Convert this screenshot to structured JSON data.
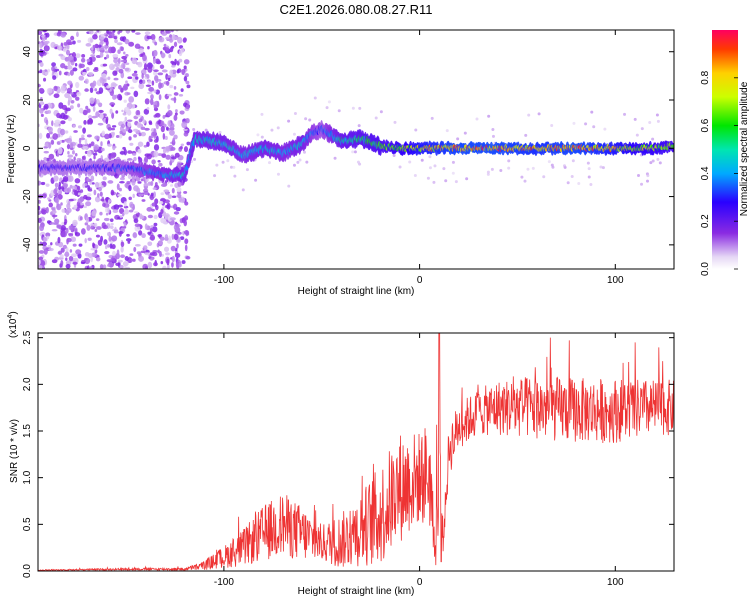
{
  "title": "C2E1.2026.080.08.27.R11",
  "chart_data": [
    {
      "type": "heatmap",
      "name": "spectrogram",
      "xlabel": "Height of straight line (km)",
      "ylabel": "Frequency (Hz)",
      "xlim": [
        -195,
        130
      ],
      "ylim": [
        -50,
        49
      ],
      "xticks": [
        -100,
        0,
        100
      ],
      "xtick_labels": [
        "-100",
        "0",
        "100"
      ],
      "yticks": [
        -40,
        -20,
        0,
        20,
        40
      ],
      "ytick_labels": [
        "-40",
        "-20",
        "0",
        "20",
        "40"
      ],
      "colorbar": {
        "label": "Normalized spectral amplitude",
        "range": [
          0,
          1
        ],
        "ticks": [
          0.0,
          0.2,
          0.4,
          0.6,
          0.8
        ],
        "tick_labels": [
          "0.0",
          "0.2",
          "0.4",
          "0.6",
          "0.8"
        ],
        "colormap": "rainbow-lavender"
      },
      "ridge": {
        "description": "dominant frequency vs height",
        "height_km": [
          -190,
          -170,
          -150,
          -130,
          -120,
          -115,
          -100,
          -90,
          -80,
          -70,
          -60,
          -55,
          -50,
          -40,
          -30,
          -20,
          -10,
          0,
          20,
          40,
          60,
          80,
          100,
          120,
          130
        ],
        "freq_hz": [
          -8,
          -8,
          -8,
          -11,
          -11,
          4,
          2,
          -3,
          0,
          -2,
          2,
          6,
          8,
          3,
          4,
          1,
          0,
          0,
          0,
          0,
          0,
          0,
          0,
          0,
          1
        ],
        "amplitude": [
          0.3,
          0.3,
          0.35,
          0.45,
          0.5,
          0.5,
          0.5,
          0.45,
          0.5,
          0.45,
          0.5,
          0.4,
          0.35,
          0.55,
          0.6,
          0.65,
          0.75,
          0.85,
          0.95,
          0.95,
          0.9,
          0.95,
          0.85,
          0.75,
          0.7
        ]
      },
      "noise_region_km": [
        -195,
        -118
      ]
    },
    {
      "type": "line",
      "name": "snr",
      "xlabel": "Height of straight line (km)",
      "ylabel": "SNR (10 * v/v)",
      "scale_note": "(x10",
      "scale_exp": "4",
      "scale_close": ")",
      "xlim": [
        -195,
        130
      ],
      "ylim": [
        0,
        2.55
      ],
      "xticks": [
        -100,
        0,
        100
      ],
      "xtick_labels": [
        "-100",
        "0",
        "100"
      ],
      "yticks": [
        0.0,
        0.5,
        1.0,
        1.5,
        2.0,
        2.5
      ],
      "ytick_labels": [
        "0.0",
        "0.5",
        "1.0",
        "1.5",
        "2.0",
        "2.5"
      ],
      "color": "#ee3333",
      "envelope": {
        "height_km": [
          -195,
          -150,
          -120,
          -110,
          -100,
          -90,
          -80,
          -70,
          -60,
          -50,
          -40,
          -30,
          -20,
          -10,
          0,
          5,
          8,
          10,
          12,
          15,
          20,
          30,
          40,
          60,
          80,
          100,
          120,
          130
        ],
        "mean": [
          0.01,
          0.02,
          0.02,
          0.06,
          0.15,
          0.25,
          0.4,
          0.5,
          0.4,
          0.3,
          0.32,
          0.45,
          0.6,
          0.9,
          1.0,
          1.05,
          0.2,
          1.1,
          0.3,
          1.3,
          1.55,
          1.7,
          1.75,
          1.75,
          1.72,
          1.72,
          1.75,
          1.75
        ],
        "spread": [
          0.005,
          0.01,
          0.015,
          0.05,
          0.12,
          0.2,
          0.3,
          0.35,
          0.3,
          0.2,
          0.3,
          0.4,
          0.55,
          0.6,
          0.5,
          0.6,
          0.1,
          1.4,
          0.1,
          0.3,
          0.25,
          0.25,
          0.3,
          0.35,
          0.35,
          0.35,
          0.3,
          0.3
        ]
      },
      "peak": {
        "height_km": 10,
        "value": 2.55
      },
      "dip": {
        "height_km": 11,
        "value": 0.1
      }
    }
  ]
}
